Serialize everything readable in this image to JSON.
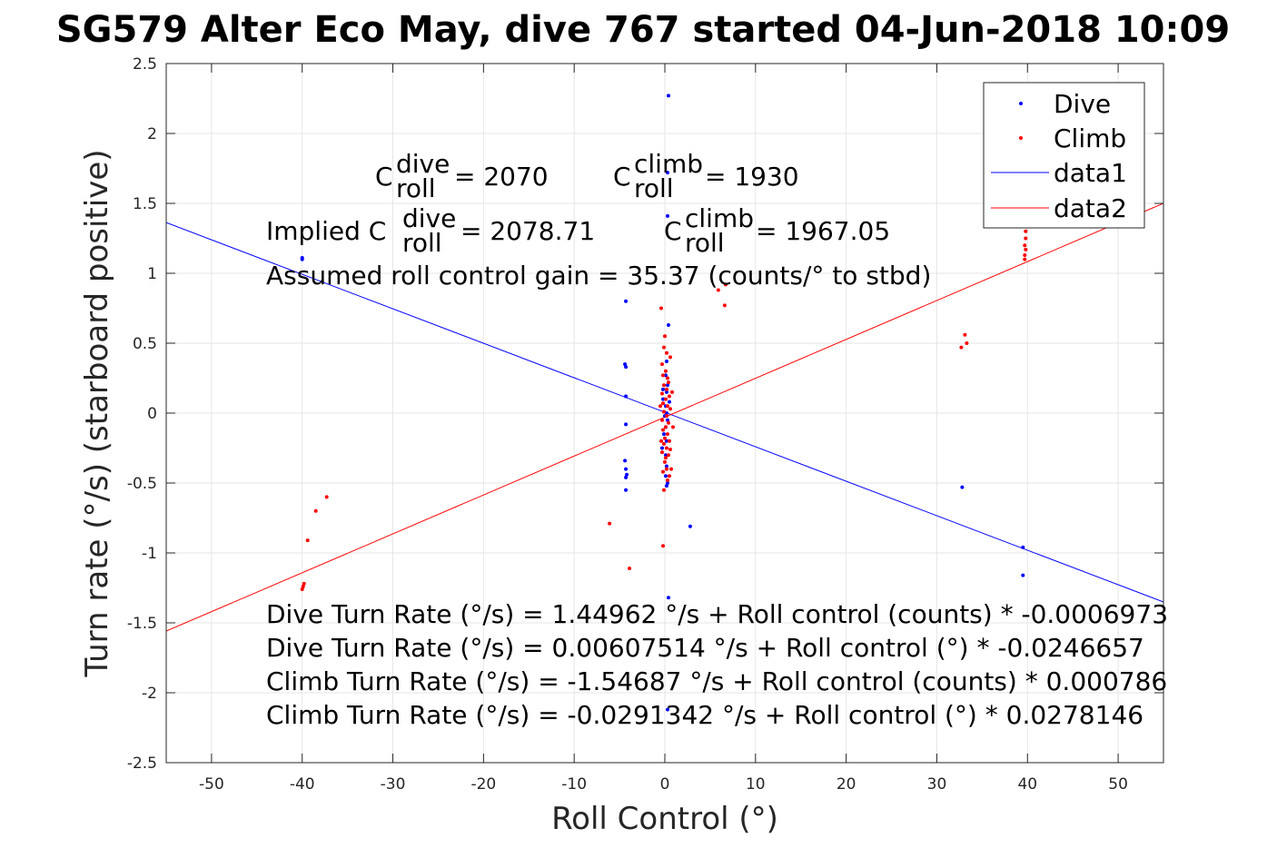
{
  "chart_data": {
    "type": "scatter",
    "title": "SG579 Alter Eco May, dive 767 started 04-Jun-2018 10:09",
    "xlabel": "Roll Control (°)",
    "ylabel": "Turn rate (°/s) (starboard positive)",
    "xlim": [
      -55,
      55
    ],
    "ylim": [
      -2.5,
      2.5
    ],
    "xticks": [
      -50,
      -40,
      -30,
      -20,
      -10,
      0,
      10,
      20,
      30,
      40,
      50
    ],
    "yticks": [
      -2.5,
      -2,
      -1.5,
      -1,
      -0.5,
      0,
      0.5,
      1,
      1.5,
      2,
      2.5
    ],
    "grid": true,
    "legend_position": "top-right",
    "series": [
      {
        "name": "Dive",
        "kind": "points",
        "color": "#0000ff",
        "points": [
          [
            -40,
            1.1
          ],
          [
            -40,
            1.11
          ],
          [
            -4.3,
            0.8
          ],
          [
            -4.4,
            0.35
          ],
          [
            -4.3,
            0.33
          ],
          [
            -4.3,
            0.12
          ],
          [
            -4.3,
            -0.08
          ],
          [
            -4.4,
            -0.34
          ],
          [
            -4.3,
            -0.4
          ],
          [
            -4.2,
            -0.44
          ],
          [
            -4.3,
            -0.46
          ],
          [
            -4.3,
            -0.55
          ],
          [
            0.4,
            2.27
          ],
          [
            0.3,
            1.72
          ],
          [
            0.3,
            1.41
          ],
          [
            0.4,
            0.63
          ],
          [
            0.2,
            0.37
          ],
          [
            0.1,
            0.27
          ],
          [
            0.3,
            0.2
          ],
          [
            0.2,
            0.15
          ],
          [
            -0.2,
            0.1
          ],
          [
            0.1,
            0.05
          ],
          [
            0.2,
            0.0
          ],
          [
            0.3,
            -0.05
          ],
          [
            0.1,
            -0.1
          ],
          [
            -0.1,
            -0.15
          ],
          [
            0.2,
            -0.2
          ],
          [
            0.1,
            -0.3
          ],
          [
            0.2,
            -0.38
          ],
          [
            0.1,
            -0.45
          ],
          [
            0.3,
            -0.5
          ],
          [
            0.2,
            -0.52
          ],
          [
            -0.2,
            0.17
          ],
          [
            0.5,
            0.08
          ],
          [
            0.0,
            -0.02
          ],
          [
            -0.3,
            -0.25
          ],
          [
            0.4,
            -1.32
          ],
          [
            0.3,
            -2.12
          ],
          [
            2.8,
            -0.81
          ],
          [
            32.8,
            -0.53
          ],
          [
            39.5,
            -0.96
          ],
          [
            39.5,
            -1.16
          ]
        ]
      },
      {
        "name": "Climb",
        "kind": "points",
        "color": "#ff0000",
        "points": [
          [
            -39.8,
            -1.22
          ],
          [
            -39.9,
            -1.24
          ],
          [
            -40.0,
            -1.26
          ],
          [
            -39.4,
            -0.91
          ],
          [
            -38.5,
            -0.7
          ],
          [
            -37.3,
            -0.6
          ],
          [
            -6.1,
            -0.79
          ],
          [
            -3.9,
            -1.11
          ],
          [
            -0.4,
            0.75
          ],
          [
            -0.2,
            -0.95
          ],
          [
            0.0,
            0.55
          ],
          [
            -0.1,
            0.47
          ],
          [
            0.2,
            0.43
          ],
          [
            0.6,
            0.4
          ],
          [
            -0.3,
            0.35
          ],
          [
            0.1,
            0.3
          ],
          [
            -0.2,
            0.27
          ],
          [
            0.3,
            0.25
          ],
          [
            0.4,
            0.22
          ],
          [
            -0.1,
            0.2
          ],
          [
            0.2,
            0.17
          ],
          [
            -0.3,
            0.14
          ],
          [
            0.5,
            0.12
          ],
          [
            0.1,
            0.1
          ],
          [
            -0.2,
            0.07
          ],
          [
            0.3,
            0.05
          ],
          [
            0.6,
            0.03
          ],
          [
            -0.1,
            0.01
          ],
          [
            0.2,
            -0.02
          ],
          [
            -0.3,
            -0.05
          ],
          [
            0.4,
            -0.07
          ],
          [
            0.1,
            -0.1
          ],
          [
            -0.2,
            -0.12
          ],
          [
            0.3,
            -0.15
          ],
          [
            0.0,
            -0.18
          ],
          [
            0.5,
            -0.2
          ],
          [
            -0.1,
            -0.22
          ],
          [
            0.2,
            -0.25
          ],
          [
            -0.3,
            -0.28
          ],
          [
            0.4,
            -0.3
          ],
          [
            0.1,
            -0.32
          ],
          [
            0.6,
            -0.26
          ],
          [
            0.0,
            -0.35
          ],
          [
            0.2,
            -0.4
          ],
          [
            -0.2,
            -0.42
          ],
          [
            0.5,
            -0.45
          ],
          [
            0.3,
            -0.48
          ],
          [
            -0.1,
            -0.55
          ],
          [
            0.7,
            -0.4
          ],
          [
            0.8,
            0.15
          ],
          [
            -0.5,
            0.05
          ],
          [
            0.9,
            -0.1
          ],
          [
            -0.4,
            -0.2
          ],
          [
            5.9,
            0.88
          ],
          [
            6.7,
            0.92
          ],
          [
            6.6,
            0.77
          ],
          [
            32.7,
            0.47
          ],
          [
            33.1,
            0.56
          ],
          [
            33.3,
            0.5
          ],
          [
            39.7,
            1.1
          ],
          [
            39.7,
            1.13
          ],
          [
            39.8,
            1.17
          ],
          [
            39.7,
            1.2
          ],
          [
            39.8,
            1.25
          ],
          [
            39.8,
            1.3
          ],
          [
            39.6,
            1.35
          ]
        ]
      },
      {
        "name": "data1",
        "kind": "line",
        "color": "#0000ff",
        "slope": -0.0246657,
        "intercept": 0.00607514
      },
      {
        "name": "data2",
        "kind": "line",
        "color": "#ff0000",
        "slope": 0.0278146,
        "intercept": -0.0291342
      }
    ],
    "annotations": {
      "c_roll_prefix": "C",
      "c_roll_sub": "roll",
      "dive_sup": "dive",
      "climb_sup": "climb",
      "c_dive_value": "= 2070",
      "c_climb_value": "= 1930",
      "implied_prefix": "Implied C",
      "implied_dive_value": "= 2078.71",
      "implied_climb_value": "= 1967.05",
      "gain_line": "Assumed roll control gain = 35.37 (counts/° to stbd)",
      "eq_lines": [
        "Dive Turn Rate (°/s) = 1.44962 °/s + Roll control (counts) * -0.0006973",
        "Dive Turn Rate (°/s) = 0.00607514 °/s + Roll control (°) * -0.0246657",
        "Climb Turn Rate (°/s) = -1.54687 °/s + Roll control (counts) * 0.000786",
        "Climb Turn Rate (°/s) = -0.0291342 °/s + Roll control (°) * 0.0278146"
      ]
    }
  }
}
